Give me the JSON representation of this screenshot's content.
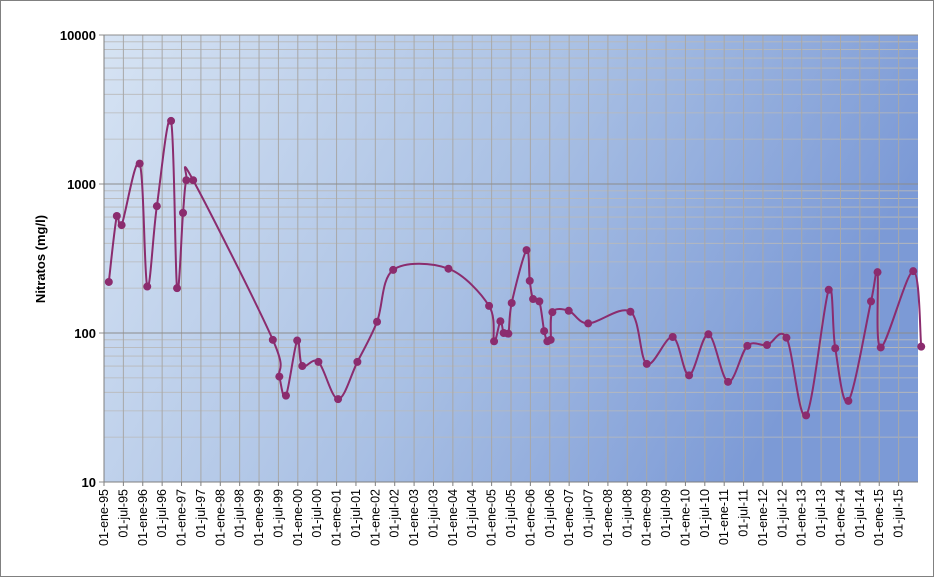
{
  "chart_data": {
    "type": "line",
    "title": "",
    "xlabel": "",
    "ylabel": "Nitratos (mg/l)",
    "y_scale": "log",
    "ylim": [
      10,
      10000
    ],
    "y_ticks": [
      10,
      100,
      1000,
      10000
    ],
    "y_tick_labels": [
      "10",
      "100",
      "1000",
      "10000"
    ],
    "xlim": [
      "1995-01-01",
      "2015-12-31"
    ],
    "x_tick_labels": [
      "01-ene-95",
      "01-jul-95",
      "01-ene-96",
      "01-jul-96",
      "01-ene-97",
      "01-jul-97",
      "01-ene-98",
      "01-jul-98",
      "01-ene-99",
      "01-jul-99",
      "01-ene-00",
      "01-jul-00",
      "01-ene-01",
      "01-jul-01",
      "01-ene-02",
      "01-jul-02",
      "01-ene-03",
      "01-jul-03",
      "01-ene-04",
      "01-jul-04",
      "01-ene-05",
      "01-jul-05",
      "01-ene-06",
      "01-jul-06",
      "01-ene-07",
      "01-jul-07",
      "01-ene-08",
      "01-jul-08",
      "01-ene-09",
      "01-jul-09",
      "01-ene-10",
      "01-jul-10",
      "01-ene-11",
      "01-jul-11",
      "01-ene-12",
      "01-jul-12",
      "01-ene-13",
      "01-jul-13",
      "01-ene-14",
      "01-jul-14",
      "01-ene-15",
      "01-jul-15"
    ],
    "grid": true,
    "legend": "none",
    "line_color": "#8b2c6e",
    "marker_color": "#8b2c6e",
    "series": [
      {
        "x": [
          "1995-02-15",
          "1995-05-01",
          "1995-06-15",
          "1995-12-01",
          "1996-02-10",
          "1996-05-10",
          "1996-09-20",
          "1996-11-15",
          "1997-01-10",
          "1997-02-10",
          "1997-04-15",
          "1999-05-01",
          "1999-07-01",
          "1999-09-01",
          "1999-12-15",
          "2000-02-01",
          "2000-07-01",
          "2001-01-01",
          "2001-07-01",
          "2002-01-01",
          "2002-06-01",
          "2003-11-01",
          "2004-11-15",
          "2005-01-01",
          "2005-03-01",
          "2005-04-01",
          "2005-05-15",
          "2005-06-15",
          "2005-11-01",
          "2005-12-01",
          "2006-01-01",
          "2006-03-01",
          "2006-04-15",
          "2006-05-15",
          "2006-06-15",
          "2006-07-01",
          "2006-12-01",
          "2007-06-01",
          "2008-07-01",
          "2008-12-01",
          "2009-08-01",
          "2010-01-01",
          "2010-07-01",
          "2011-01-01",
          "2011-07-01",
          "2012-01-01",
          "2012-07-01",
          "2013-01-01",
          "2013-08-01",
          "2013-10-01",
          "2014-02-01",
          "2014-09-01",
          "2014-11-01",
          "2014-12-01",
          "2015-10-01",
          "2015-12-15"
        ],
        "values": [
          220,
          610,
          530,
          1370,
          205,
          710,
          2650,
          200,
          640,
          1060,
          1060,
          90,
          51,
          38,
          89,
          60,
          64,
          36,
          64,
          119,
          265,
          270,
          152,
          88,
          120,
          100,
          99,
          159,
          360,
          224,
          169,
          163,
          103,
          88,
          90,
          138,
          141,
          116,
          139,
          62,
          94,
          52,
          98,
          47,
          82,
          83,
          93,
          28,
          195,
          79,
          35,
          163,
          256,
          80,
          260,
          81
        ]
      }
    ]
  }
}
